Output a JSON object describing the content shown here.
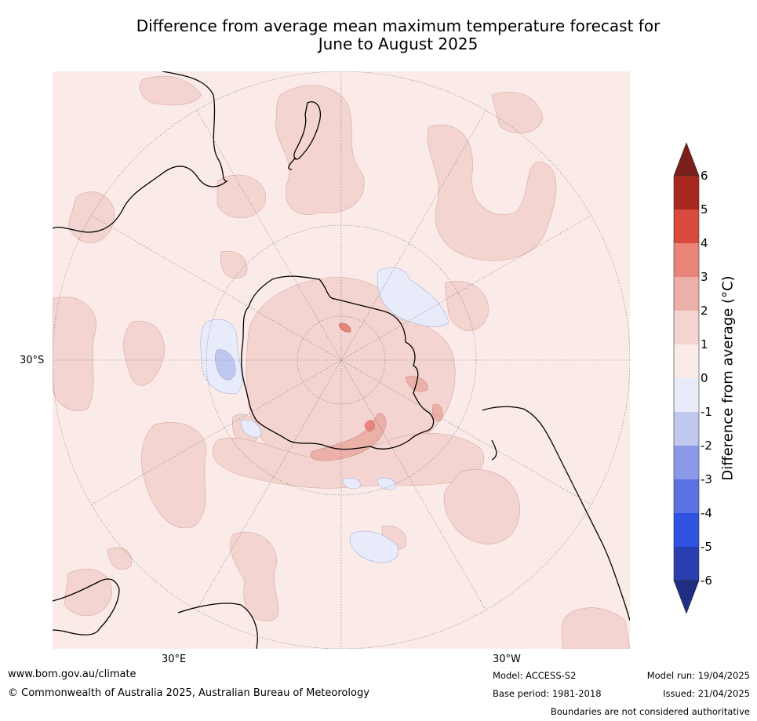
{
  "title_line1": "Difference from average mean maximum temperature forecast for",
  "title_line2": "June to August 2025",
  "map": {
    "lon_labels": [
      "30°E",
      "30°W"
    ],
    "lat_label": "30°S"
  },
  "colorbar": {
    "label": "Difference from average (°C)",
    "ticks": [
      "6",
      "5",
      "4",
      "3",
      "2",
      "1",
      "0",
      "-1",
      "-2",
      "-3",
      "-4",
      "-5",
      "-6"
    ],
    "colors": {
      "above_6": "#7a1f1a",
      "5_6": "#a8281f",
      "4_5": "#d84a3e",
      "3_4": "#e8847a",
      "2_3": "#ebb0a8",
      "1_2": "#f3d4d0",
      "0_1": "#fbebe8",
      "m1_0": "#e8ebfa",
      "m2_m1": "#c0c8f0",
      "m3_m2": "#8a99e8",
      "m4_m3": "#5a73e0",
      "m5_m4": "#3052e0",
      "m6_m5": "#2a3eb0",
      "below_m6": "#1f2e80"
    }
  },
  "footer": {
    "website": "www.bom.gov.au/climate",
    "copyright": "© Commonwealth of Australia 2025, Australian Bureau of Meteorology",
    "model": "Model: ACCESS-S2",
    "base_period": "Base period: 1981-2018",
    "model_run": "Model run: 19/04/2025",
    "issued": "Issued: 21/04/2025",
    "disclaimer": "Boundaries are not considered authoritative"
  }
}
